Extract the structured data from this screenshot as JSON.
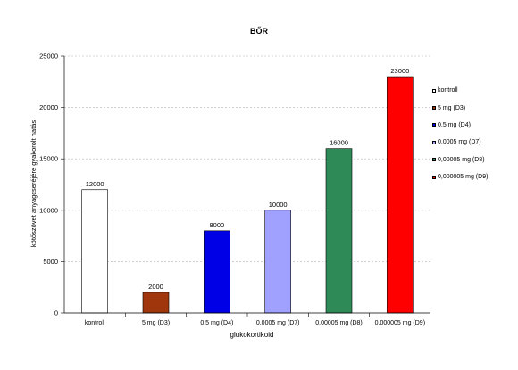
{
  "chart_data": {
    "type": "bar",
    "title": "BŐR",
    "xlabel": "glukokortikoid",
    "ylabel": "kötőszövet anyagcseréjére gyakorolt hatás",
    "categories": [
      "kontroll",
      "5 mg (D3)",
      "0,5 mg (D4)",
      "0,0005 mg (D7)",
      "0,00005 mg (D8)",
      "0,000005 mg (D9)"
    ],
    "values": [
      12000,
      2000,
      8000,
      10000,
      16000,
      23000
    ],
    "data_labels": [
      "12000",
      "2000",
      "8000",
      "10000",
      "16000",
      "23000"
    ],
    "colors": [
      "#ffffff",
      "#a0360b",
      "#0000e6",
      "#a0a0ff",
      "#2e8b57",
      "#ff0000"
    ],
    "ylim": [
      0,
      25000
    ],
    "yticks": [
      0,
      5000,
      10000,
      15000,
      20000,
      25000
    ],
    "ytick_labels": [
      "0",
      "5000",
      "10000",
      "15000",
      "20000",
      "25000"
    ],
    "grid": true,
    "legend_position": "right",
    "legend": [
      "kontroll",
      "5 mg (D3)",
      "0,5 mg (D4)",
      "0,0005 mg (D7)",
      "0,00005 mg (D8)",
      "0,000005 mg (D9)"
    ]
  }
}
